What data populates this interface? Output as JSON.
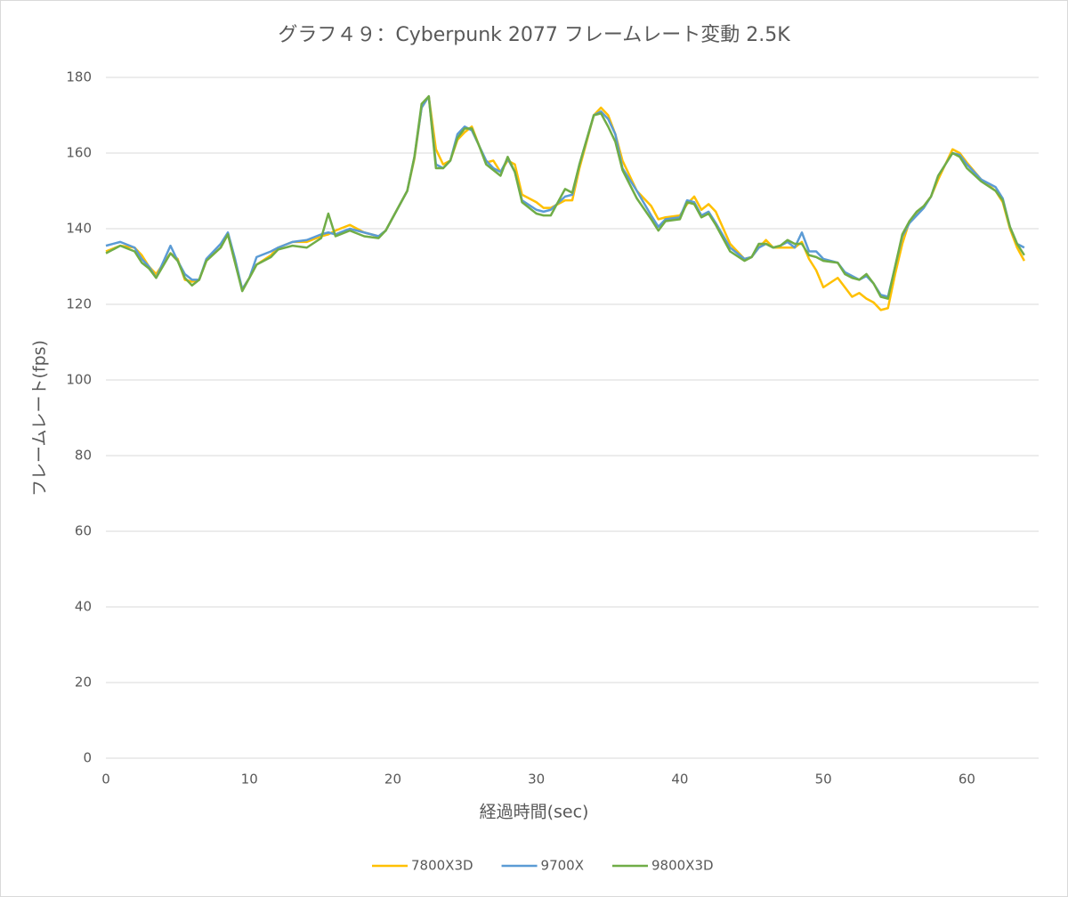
{
  "chart_data": {
    "type": "line",
    "title": "グラフ４９：Cyberpunk 2077 フレームレート変動 2.5K",
    "x_label": "経過時間(sec)",
    "y_label": "フレームレート(fps)",
    "x": [
      0,
      1,
      2,
      2.5,
      3,
      3.5,
      4.5,
      5,
      5.5,
      6,
      6.5,
      7,
      8,
      8.5,
      9,
      9.5,
      10,
      10.5,
      11.5,
      12,
      13,
      14,
      15,
      15.5,
      16,
      17,
      18,
      19,
      19.5,
      20.5,
      21,
      21.5,
      22,
      22.5,
      23,
      23.5,
      24,
      24.5,
      25,
      25.5,
      26,
      26.5,
      27,
      27.5,
      28,
      28.5,
      29,
      30,
      30.5,
      31,
      32,
      32.5,
      33,
      34,
      34.5,
      35,
      35.5,
      36,
      37,
      38,
      38.5,
      39,
      40,
      40.5,
      41,
      41.5,
      42,
      42.5,
      43.5,
      44.5,
      45,
      45.5,
      46,
      46.5,
      47,
      47.5,
      48,
      48.5,
      49,
      49.5,
      50,
      51,
      51.5,
      52,
      52.5,
      53,
      53.5,
      54,
      54.5,
      55,
      55.5,
      56,
      56.5,
      57,
      57.5,
      58,
      59,
      59.5,
      60,
      61,
      62,
      62.5,
      63,
      63.5,
      64
    ],
    "series": [
      {
        "name": "7800X3D",
        "color": "#ffc000",
        "values": [
          134,
          135.5,
          135,
          133,
          130,
          128,
          133.5,
          132,
          126.5,
          126,
          126.5,
          131.5,
          135,
          138.5,
          131,
          124,
          127,
          130.5,
          133,
          135,
          136.5,
          136.5,
          138,
          138.5,
          139.5,
          141,
          139,
          138,
          139.5,
          146.5,
          150,
          158.5,
          172,
          175,
          161,
          157,
          158,
          163.5,
          165.5,
          167,
          162,
          157.5,
          158,
          155,
          158,
          157,
          149,
          147,
          145.5,
          145.5,
          147.5,
          147.5,
          156,
          170,
          172,
          170,
          165,
          158,
          150,
          146,
          142.5,
          143,
          143.5,
          146.5,
          148.5,
          145,
          146.5,
          144.5,
          136,
          132,
          132.5,
          135,
          137,
          135,
          135,
          135,
          135,
          136.5,
          132,
          129,
          124.5,
          127,
          124.5,
          122,
          123,
          121.5,
          120.5,
          118.5,
          119,
          128,
          136,
          142,
          144,
          146,
          148.5,
          153,
          161,
          160,
          157.5,
          153,
          150,
          147,
          140,
          135,
          131.5
        ]
      },
      {
        "name": "9700X",
        "color": "#5b9bd5",
        "values": [
          135.5,
          136.5,
          135,
          132,
          130,
          127,
          135.5,
          131.5,
          128,
          126.5,
          126.5,
          132,
          136,
          139,
          132,
          124,
          127,
          132.5,
          134,
          135,
          136.5,
          137,
          138.5,
          139,
          138.5,
          140,
          139,
          138,
          139.5,
          146.5,
          150,
          159,
          172,
          175,
          157,
          156,
          158,
          165,
          167,
          166,
          162,
          158,
          156,
          155,
          158.5,
          155,
          147.5,
          145,
          144.5,
          145,
          148.5,
          149,
          157,
          170,
          171,
          169,
          165,
          156,
          150,
          143.5,
          140.5,
          142.5,
          143,
          147.5,
          147,
          143.5,
          144.5,
          141.5,
          135,
          132,
          132.5,
          135,
          136,
          135,
          135.5,
          136.5,
          135,
          139,
          134,
          134,
          132,
          131,
          128.5,
          127.5,
          126.5,
          127.5,
          125.5,
          122.5,
          122,
          130,
          138,
          141.5,
          143.5,
          145.5,
          148.5,
          154,
          160,
          159.5,
          157,
          153,
          151,
          148,
          140.5,
          136,
          135
        ]
      },
      {
        "name": "9800X3D",
        "color": "#70ad47",
        "values": [
          133.5,
          135.5,
          134,
          131,
          129.5,
          127,
          133.5,
          131.5,
          127,
          125,
          126.5,
          131.5,
          135,
          138.5,
          131,
          123.5,
          127,
          130.5,
          132.5,
          134.5,
          135.5,
          135,
          137.5,
          144,
          138,
          139.5,
          138,
          137.5,
          139.5,
          146.5,
          150,
          159,
          173,
          175,
          156,
          156,
          158,
          164,
          166.5,
          166.5,
          162,
          157,
          155.5,
          154,
          159,
          155,
          147,
          144,
          143.5,
          143.5,
          150.5,
          149.5,
          157,
          170,
          170.5,
          167,
          163,
          155.5,
          148,
          142.5,
          139.5,
          142,
          142.5,
          147,
          146.5,
          143,
          144,
          141,
          134,
          131.5,
          132.5,
          136,
          136,
          135,
          135.5,
          137,
          136,
          136,
          133,
          132.5,
          131.5,
          131,
          128,
          127,
          126.5,
          128,
          125.5,
          122,
          121.5,
          130,
          138.5,
          142,
          144.5,
          146,
          148.5,
          154,
          160,
          159,
          156,
          152.5,
          150,
          147.5,
          140.5,
          136,
          133
        ]
      }
    ],
    "xlim": [
      0,
      65
    ],
    "xticks": [
      0,
      10,
      20,
      30,
      40,
      50,
      60
    ],
    "ylim": [
      0,
      180
    ],
    "yticks": [
      0,
      20,
      40,
      60,
      80,
      100,
      120,
      140,
      160,
      180
    ],
    "grid": true,
    "legend": "bottom"
  }
}
